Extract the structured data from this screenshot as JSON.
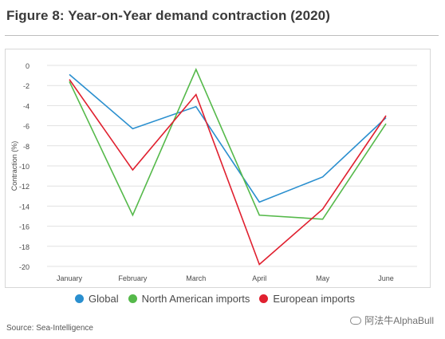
{
  "header": {
    "title": "Figure 8: Year-on-Year demand contraction (2020)"
  },
  "chart_data": {
    "type": "line",
    "categories": [
      "January",
      "February",
      "March",
      "April",
      "May",
      "June"
    ],
    "ylabel": "Contraction (%)",
    "ylim": [
      -20,
      0
    ],
    "yticks": [
      0,
      -2,
      -4,
      -6,
      -8,
      -10,
      -12,
      -14,
      -16,
      -18,
      -20
    ],
    "grid": true,
    "legend_position": "bottom",
    "series": [
      {
        "name": "Global",
        "color": "#2a8fcf",
        "values": [
          -0.9,
          -6.3,
          -4.1,
          -13.6,
          -11.1,
          -5.2
        ]
      },
      {
        "name": "North American imports",
        "color": "#55b94a",
        "values": [
          -1.6,
          -14.9,
          -0.4,
          -14.9,
          -15.3,
          -5.8
        ]
      },
      {
        "name": "European imports",
        "color": "#e0202f",
        "values": [
          -1.4,
          -10.4,
          -2.9,
          -19.8,
          -14.3,
          -5.0
        ]
      }
    ]
  },
  "footer": {
    "source": "Source: Sea-Intelligence",
    "watermark": "阿法牛AlphaBull"
  }
}
